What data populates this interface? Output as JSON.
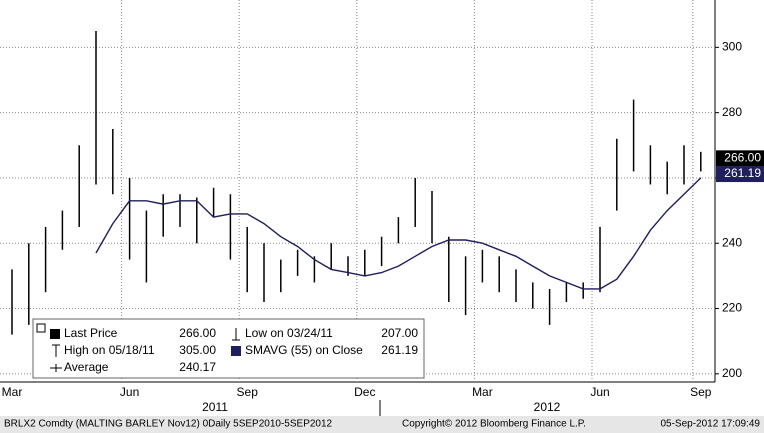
{
  "chart_data": {
    "type": "hilo",
    "categories": [
      "Mar",
      null,
      null,
      null,
      null,
      null,
      null,
      "Jun",
      null,
      null,
      null,
      null,
      null,
      null,
      "Sep",
      null,
      null,
      null,
      null,
      null,
      null,
      "Dec",
      null,
      null,
      null,
      null,
      null,
      null,
      "Mar",
      null,
      null,
      null,
      null,
      null,
      null,
      "Jun",
      null,
      null,
      null,
      null,
      null,
      "Sep"
    ],
    "series": [
      {
        "name": "Last Price",
        "color": "#000000",
        "high": [
          232,
          240,
          245,
          250,
          270,
          305,
          275,
          260,
          250,
          255,
          255,
          254,
          257,
          255,
          245,
          240,
          235,
          238,
          236,
          240,
          236,
          238,
          242,
          248,
          260,
          256,
          242,
          236,
          238,
          236,
          232,
          228,
          226,
          228,
          228,
          245,
          272,
          284,
          270,
          265,
          270,
          268
        ],
        "low": [
          212,
          215,
          225,
          238,
          245,
          258,
          255,
          235,
          228,
          242,
          245,
          240,
          248,
          235,
          225,
          222,
          225,
          230,
          228,
          232,
          230,
          230,
          233,
          240,
          245,
          240,
          222,
          218,
          228,
          225,
          222,
          220,
          215,
          222,
          223,
          225,
          250,
          262,
          258,
          255,
          258,
          262
        ]
      },
      {
        "name": "SMAVG (55) on Close",
        "color": "#1f1f5e",
        "values": [
          null,
          null,
          null,
          null,
          null,
          237,
          246,
          253,
          253,
          252,
          253,
          253,
          248,
          249,
          249,
          246,
          242,
          239,
          235,
          232,
          231,
          230,
          231,
          233,
          236,
          239,
          241,
          241,
          240,
          238,
          236,
          233,
          230,
          228,
          226,
          226,
          229,
          236,
          244,
          250,
          255,
          260
        ]
      }
    ],
    "ylim": [
      197.5,
      314.5
    ],
    "yticks": [
      200,
      220,
      240,
      260,
      280,
      300
    ],
    "grid": true,
    "price_tags": [
      {
        "value": 266,
        "label": "266.00",
        "color": "#000000"
      },
      {
        "value": 261.19,
        "label": "261.19",
        "color": "#1f1f5e"
      }
    ],
    "year_labels": [
      "2011",
      "2012"
    ],
    "legend": [
      {
        "name": "Last Price",
        "value_label": "266.00"
      },
      {
        "name": "Low on 03/24/11",
        "value_label": "207.00"
      },
      {
        "name": "High on 05/18/11",
        "value_label": "305.00"
      },
      {
        "name": "SMAVG (55) on Close",
        "value_label": "261.19"
      },
      {
        "name": "Average",
        "value_label": "240.17"
      }
    ],
    "footer": {
      "left": "BRLX2 Comdty (MALTING BARLEY   Nov12) 0Daily 5SEP2010-5SEP2012",
      "center": "Copyright© 2012 Bloomberg Finance L.P.",
      "right": "05-Sep-2012 17:09:49"
    }
  }
}
